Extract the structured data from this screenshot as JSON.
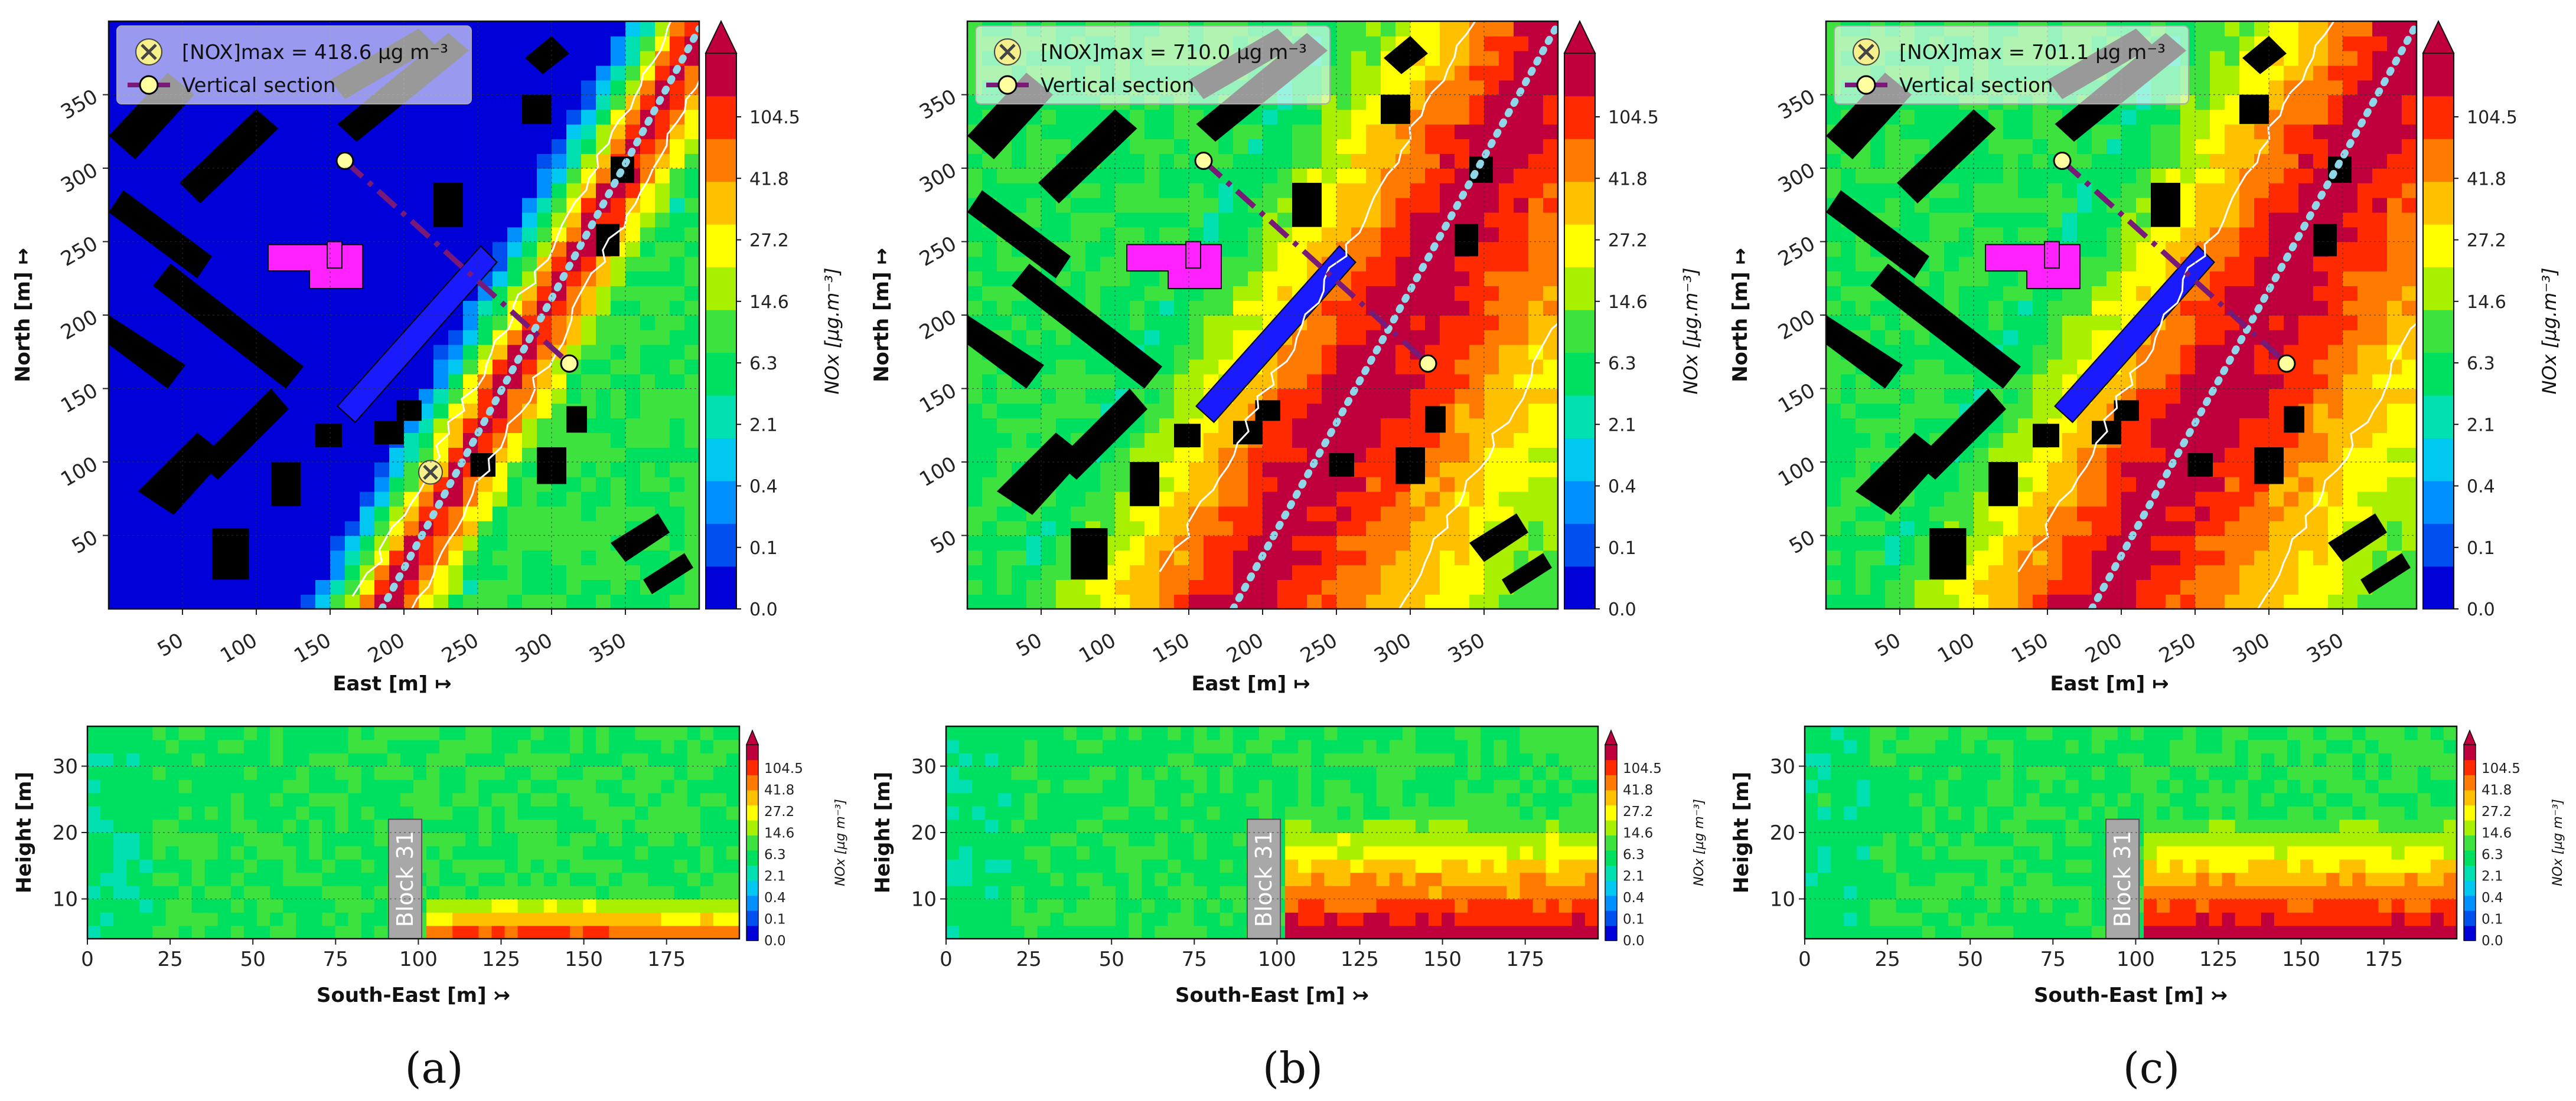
{
  "chart_data": [
    {
      "type": "heatmap",
      "panel": "(a)",
      "map": {
        "xlabel": "East [m]",
        "ylabel": "North [m]",
        "x_ticks": [
          "50",
          "100",
          "150",
          "200",
          "250",
          "300",
          "350"
        ],
        "y_ticks": [
          "50",
          "100",
          "150",
          "200",
          "250",
          "300",
          "350"
        ],
        "xlim": [
          0,
          400
        ],
        "ylim": [
          0,
          400
        ],
        "colorbar_label": "NOx [µg.m⁻³]",
        "colorbar_ticks": [
          "0.0",
          "0.1",
          "0.4",
          "2.1",
          "6.3",
          "14.6",
          "27.2",
          "41.8",
          "104.5"
        ],
        "legend": [
          {
            "label": "[NOX]max = 418.6 µg m⁻³",
            "marker": "yellow-x"
          },
          {
            "label": "Vertical section",
            "marker": "purple-line-circle"
          }
        ],
        "max_point": {
          "east": 218,
          "north": 93
        },
        "section": {
          "start": [
            160,
            305
          ],
          "end": [
            312,
            167
          ]
        },
        "road_centerline": [
          [
            185,
            0
          ],
          [
            400,
            395
          ]
        ],
        "plume_width_m": 38,
        "background_level": "low"
      },
      "section": {
        "xlabel": "South-East [m]",
        "ylabel": "Height [m]",
        "x_ticks": [
          "0",
          "25",
          "50",
          "75",
          "100",
          "125",
          "150",
          "175"
        ],
        "y_ticks": [
          "10",
          "20",
          "30"
        ],
        "xlim": [
          0,
          197
        ],
        "ylim": [
          4,
          36
        ],
        "block_label": "Block 31",
        "block_range": [
          91,
          101
        ],
        "block_height": 22,
        "colorbar_ticks": [
          "0.0",
          "0.1",
          "0.4",
          "2.1",
          "6.3",
          "14.6",
          "27.2",
          "41.8",
          "104.5"
        ],
        "colorbar_label": "NOx [µg m⁻³]"
      }
    },
    {
      "type": "heatmap",
      "panel": "(b)",
      "map": {
        "xlabel": "East [m]",
        "ylabel": "North [m]",
        "x_ticks": [
          "50",
          "100",
          "150",
          "200",
          "250",
          "300",
          "350"
        ],
        "y_ticks": [
          "50",
          "100",
          "150",
          "200",
          "250",
          "300",
          "350"
        ],
        "xlim": [
          0,
          400
        ],
        "ylim": [
          0,
          400
        ],
        "colorbar_label": "NOx [µg.m⁻³]",
        "colorbar_ticks": [
          "0.0",
          "0.1",
          "0.4",
          "2.1",
          "6.3",
          "14.6",
          "27.2",
          "41.8",
          "104.5"
        ],
        "legend": [
          {
            "label": "[NOX]max = 710.0 µg m⁻³",
            "marker": "yellow-x"
          },
          {
            "label": "Vertical section",
            "marker": "purple-line-circle"
          }
        ],
        "section": {
          "start": [
            160,
            305
          ],
          "end": [
            312,
            167
          ]
        },
        "road_centerline": [
          [
            180,
            0
          ],
          [
            400,
            398
          ]
        ],
        "plume_width_m": 95,
        "background_level": "high"
      },
      "section": {
        "xlabel": "South-East [m]",
        "ylabel": "Height [m]",
        "x_ticks": [
          "0",
          "25",
          "50",
          "75",
          "100",
          "125",
          "150",
          "175"
        ],
        "y_ticks": [
          "10",
          "20",
          "30"
        ],
        "xlim": [
          0,
          197
        ],
        "ylim": [
          4,
          36
        ],
        "block_label": "Block 31",
        "block_range": [
          91,
          101
        ],
        "block_height": 22,
        "colorbar_ticks": [
          "0.0",
          "0.1",
          "0.4",
          "2.1",
          "6.3",
          "14.6",
          "27.2",
          "41.8",
          "104.5"
        ],
        "colorbar_label": "NOx [µg m⁻³]"
      }
    },
    {
      "type": "heatmap",
      "panel": "(c)",
      "map": {
        "xlabel": "East [m]",
        "ylabel": "North [m]",
        "x_ticks": [
          "50",
          "100",
          "150",
          "200",
          "250",
          "300",
          "350"
        ],
        "y_ticks": [
          "50",
          "100",
          "150",
          "200",
          "250",
          "300",
          "350"
        ],
        "xlim": [
          0,
          400
        ],
        "ylim": [
          0,
          400
        ],
        "colorbar_label": "NOx [µg.m⁻³]",
        "colorbar_ticks": [
          "0.0",
          "0.1",
          "0.4",
          "2.1",
          "6.3",
          "14.6",
          "27.2",
          "41.8",
          "104.5"
        ],
        "legend": [
          {
            "label": "[NOX]max = 701.1 µg m⁻³",
            "marker": "yellow-x"
          },
          {
            "label": "Vertical section",
            "marker": "purple-line-circle"
          }
        ],
        "section": {
          "start": [
            160,
            305
          ],
          "end": [
            312,
            167
          ]
        },
        "road_centerline": [
          [
            180,
            0
          ],
          [
            400,
            398
          ]
        ],
        "plume_width_m": 95,
        "background_level": "high"
      },
      "section": {
        "xlabel": "South-East [m]",
        "ylabel": "Height [m]",
        "x_ticks": [
          "0",
          "25",
          "50",
          "75",
          "100",
          "125",
          "150",
          "175"
        ],
        "y_ticks": [
          "10",
          "20",
          "30"
        ],
        "xlim": [
          0,
          197
        ],
        "ylim": [
          4,
          36
        ],
        "block_label": "Block 31",
        "block_range": [
          91,
          101
        ],
        "block_height": 22,
        "colorbar_ticks": [
          "0.0",
          "0.1",
          "0.4",
          "2.1",
          "6.3",
          "14.6",
          "27.2",
          "41.8",
          "104.5"
        ],
        "colorbar_label": "NOx [µg m⁻³]"
      }
    }
  ],
  "colors": {
    "scale": [
      "#0000d8",
      "#0050f0",
      "#0090ff",
      "#00c8f0",
      "#00e0b0",
      "#00e060",
      "#3ee23e",
      "#a8f000",
      "#ffff00",
      "#ffc000",
      "#ff7a00",
      "#ff2a00",
      "#c0003c"
    ],
    "building": "#000000",
    "special_building": "#ff22ff",
    "blue_block": "#1a1aff",
    "section_line": "#7a1a78",
    "road": "#8fd6e8",
    "block31": "#a8a8a8"
  },
  "labels": {
    "a": "(a)",
    "b": "(b)",
    "c": "(c)"
  }
}
